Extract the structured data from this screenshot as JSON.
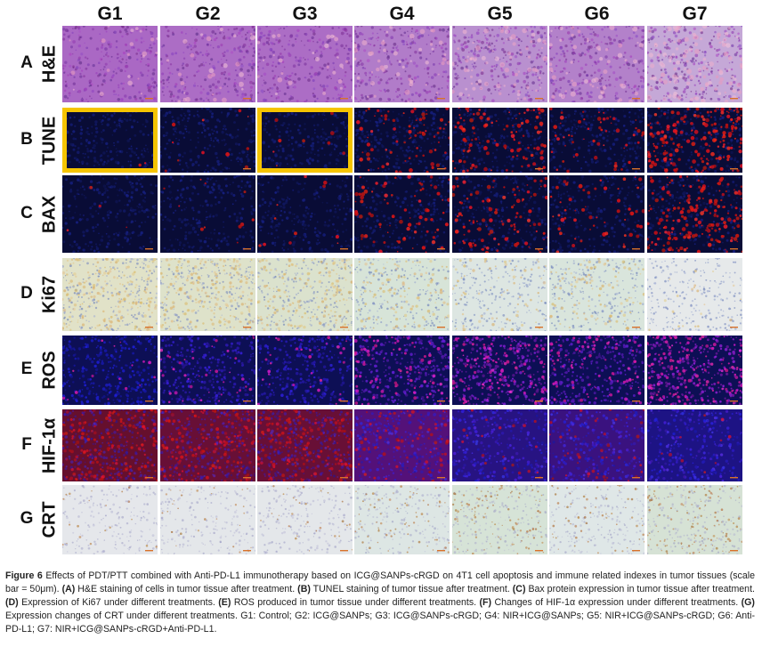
{
  "columns": [
    "G1",
    "G2",
    "G3",
    "G4",
    "G5",
    "G6",
    "G7"
  ],
  "rows": [
    {
      "letter": "A",
      "label": "H&E",
      "stain": "he"
    },
    {
      "letter": "B",
      "label": "TUNE",
      "stain": "fluor_red"
    },
    {
      "letter": "C",
      "label": "BAX",
      "stain": "fluor_red"
    },
    {
      "letter": "D",
      "label": "Ki67",
      "stain": "ihc"
    },
    {
      "letter": "E",
      "label": "ROS",
      "stain": "fluor_magenta"
    },
    {
      "letter": "F",
      "label": "HIF-1α",
      "stain": "fluor_redblue"
    },
    {
      "letter": "G",
      "label": "CRT",
      "stain": "ihc_light"
    }
  ],
  "highlighted_panels": [
    {
      "row": "B",
      "column": "G1"
    },
    {
      "row": "B",
      "column": "G3"
    }
  ],
  "colors": {
    "highlight": "#f5c400",
    "he_base": "#9a6fcf",
    "fluor_base": "#0a0f3a",
    "ihc_base": "#e9dccb",
    "scale_bar": "#d8722a"
  },
  "caption": {
    "figure_label": "Figure 6",
    "intro": "Effects of PDT/PTT combined with Anti-PD-L1 immunotherapy based on ICG@SANPs-cRGD on 4T1 cell apoptosis and immune related indexes in tumor tissues (scale bar = 50μm).",
    "parts": [
      {
        "tag": "(A)",
        "text": "H&E staining of cells in tumor tissue after treatment."
      },
      {
        "tag": "(B)",
        "text": "TUNEL staining of tumor tissue after treatment."
      },
      {
        "tag": "(C)",
        "text": "Bax protein expression in tumor tissue after treatment."
      },
      {
        "tag": "(D)",
        "text": "Expression of Ki67 under different treatments."
      },
      {
        "tag": "(E)",
        "text": "ROS produced in tumor tissue under different treatments."
      },
      {
        "tag": "(F)",
        "text": "Changes of HIF-1α expression under different treatments."
      },
      {
        "tag": "(G)",
        "text": "Expression changes of CRT under different treatments."
      }
    ],
    "groups": "G1: Control; G2: ICG@SANPs; G3: ICG@SANPs-cRGD; G4: NIR+ICG@SANPs; G5: NIR+ICG@SANPs-cRGD; G6: Anti-PD-L1; G7: NIR+ICG@SANPs-cRGD+Anti-PD-L1."
  }
}
